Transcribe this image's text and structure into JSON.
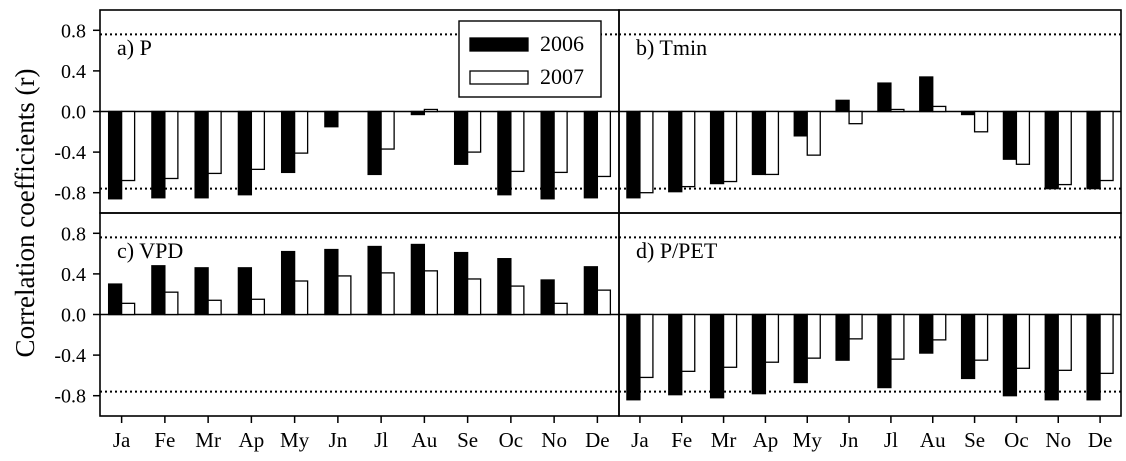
{
  "ylabel": "Correlation coefficients (r)",
  "legend": [
    {
      "label": "2006",
      "color": "#000000"
    },
    {
      "label": "2007",
      "color": "#ffffff"
    }
  ],
  "threshold": 0.76,
  "chart_data": [
    {
      "type": "bar",
      "title": "a) P",
      "categories": [
        "Ja",
        "Fe",
        "Mr",
        "Ap",
        "My",
        "Jn",
        "Jl",
        "Au",
        "Se",
        "Oc",
        "No",
        "De"
      ],
      "ylim": [
        -1.0,
        1.0
      ],
      "yticks": [
        -0.8,
        -0.4,
        0.0,
        0.4,
        0.8
      ],
      "ytick_labels": [
        "-0.8",
        "-0.4",
        "0.0",
        "0.4",
        "0.8"
      ],
      "series": [
        {
          "name": "2006",
          "values": [
            -0.86,
            -0.85,
            -0.85,
            -0.82,
            -0.6,
            -0.15,
            -0.62,
            -0.03,
            -0.52,
            -0.82,
            -0.86,
            -0.85
          ]
        },
        {
          "name": "2007",
          "values": [
            -0.68,
            -0.66,
            -0.61,
            -0.57,
            -0.41,
            0.0,
            -0.37,
            0.02,
            -0.4,
            -0.59,
            -0.6,
            -0.64
          ]
        }
      ],
      "threshold_lines": [
        0.76,
        -0.76
      ]
    },
    {
      "type": "bar",
      "title": "b) Tmin",
      "categories": [
        "Ja",
        "Fe",
        "Mr",
        "Ap",
        "My",
        "Jn",
        "Jl",
        "Au",
        "Se",
        "Oc",
        "No",
        "De"
      ],
      "ylim": [
        -1.0,
        1.0
      ],
      "yticks": [
        -0.8,
        -0.4,
        0.0,
        0.4,
        0.8
      ],
      "series": [
        {
          "name": "2006",
          "values": [
            -0.85,
            -0.79,
            -0.71,
            -0.62,
            -0.24,
            0.11,
            0.28,
            0.34,
            -0.03,
            -0.47,
            -0.76,
            -0.76
          ]
        },
        {
          "name": "2007",
          "values": [
            -0.8,
            -0.74,
            -0.69,
            -0.62,
            -0.43,
            -0.12,
            0.02,
            0.05,
            -0.2,
            -0.52,
            -0.72,
            -0.68
          ]
        }
      ],
      "threshold_lines": [
        0.76,
        -0.76
      ]
    },
    {
      "type": "bar",
      "title": "c) VPD",
      "categories": [
        "Ja",
        "Fe",
        "Mr",
        "Ap",
        "My",
        "Jn",
        "Jl",
        "Au",
        "Se",
        "Oc",
        "No",
        "De"
      ],
      "ylim": [
        -1.0,
        1.0
      ],
      "yticks": [
        -0.8,
        -0.4,
        0.0,
        0.4,
        0.8
      ],
      "series": [
        {
          "name": "2006",
          "values": [
            0.3,
            0.48,
            0.46,
            0.46,
            0.62,
            0.64,
            0.67,
            0.69,
            0.61,
            0.55,
            0.34,
            0.47
          ]
        },
        {
          "name": "2007",
          "values": [
            0.11,
            0.22,
            0.14,
            0.15,
            0.33,
            0.38,
            0.41,
            0.43,
            0.35,
            0.28,
            0.11,
            0.24
          ]
        }
      ],
      "threshold_lines": [
        0.76,
        -0.76
      ]
    },
    {
      "type": "bar",
      "title": "d) P/PET",
      "categories": [
        "Ja",
        "Fe",
        "Mr",
        "Ap",
        "My",
        "Jn",
        "Jl",
        "Au",
        "Se",
        "Oc",
        "No",
        "De"
      ],
      "ylim": [
        -1.0,
        1.0
      ],
      "yticks": [
        -0.8,
        -0.4,
        0.0,
        0.4,
        0.8
      ],
      "series": [
        {
          "name": "2006",
          "values": [
            -0.84,
            -0.79,
            -0.82,
            -0.78,
            -0.67,
            -0.45,
            -0.72,
            -0.38,
            -0.63,
            -0.8,
            -0.84,
            -0.84
          ]
        },
        {
          "name": "2007",
          "values": [
            -0.62,
            -0.56,
            -0.52,
            -0.47,
            -0.43,
            -0.24,
            -0.44,
            -0.25,
            -0.45,
            -0.53,
            -0.55,
            -0.58
          ]
        }
      ],
      "threshold_lines": [
        0.76,
        -0.76
      ]
    }
  ]
}
